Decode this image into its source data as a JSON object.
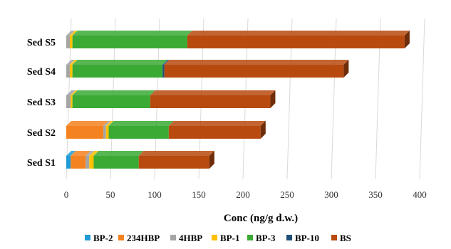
{
  "chart_data": {
    "type": "bar",
    "orientation": "horizontal",
    "stacked": true,
    "three_d": true,
    "categories": [
      "Sed S1",
      "Sed S2",
      "Sed S3",
      "Sed S4",
      "Sed S5"
    ],
    "series": [
      {
        "name": "BP-2",
        "color": "#1f9bd7",
        "values": [
          5,
          0,
          0,
          0,
          0
        ]
      },
      {
        "name": "234HBP",
        "color": "#f58220",
        "values": [
          17,
          42,
          0,
          0,
          0
        ]
      },
      {
        "name": "4HBP",
        "color": "#a5a5a5",
        "values": [
          4,
          3,
          5,
          4,
          4
        ]
      },
      {
        "name": "BP-1",
        "color": "#ffc000",
        "values": [
          5,
          3,
          2,
          3,
          3
        ]
      },
      {
        "name": "BP-3",
        "color": "#3aaa35",
        "values": [
          51,
          68,
          88,
          102,
          130
        ]
      },
      {
        "name": "BP-10",
        "color": "#1f4e79",
        "values": [
          0,
          0,
          0,
          2,
          0
        ]
      },
      {
        "name": "BS",
        "color": "#b84a0f",
        "values": [
          80,
          104,
          136,
          203,
          246
        ]
      }
    ],
    "xlim": [
      0,
      400
    ],
    "xticks": [
      0,
      50,
      100,
      150,
      200,
      250,
      300,
      350,
      400
    ],
    "xlabel": "Conc (ng/g d.w.)",
    "title": "",
    "grid": "vertical",
    "legend": "bottom"
  }
}
